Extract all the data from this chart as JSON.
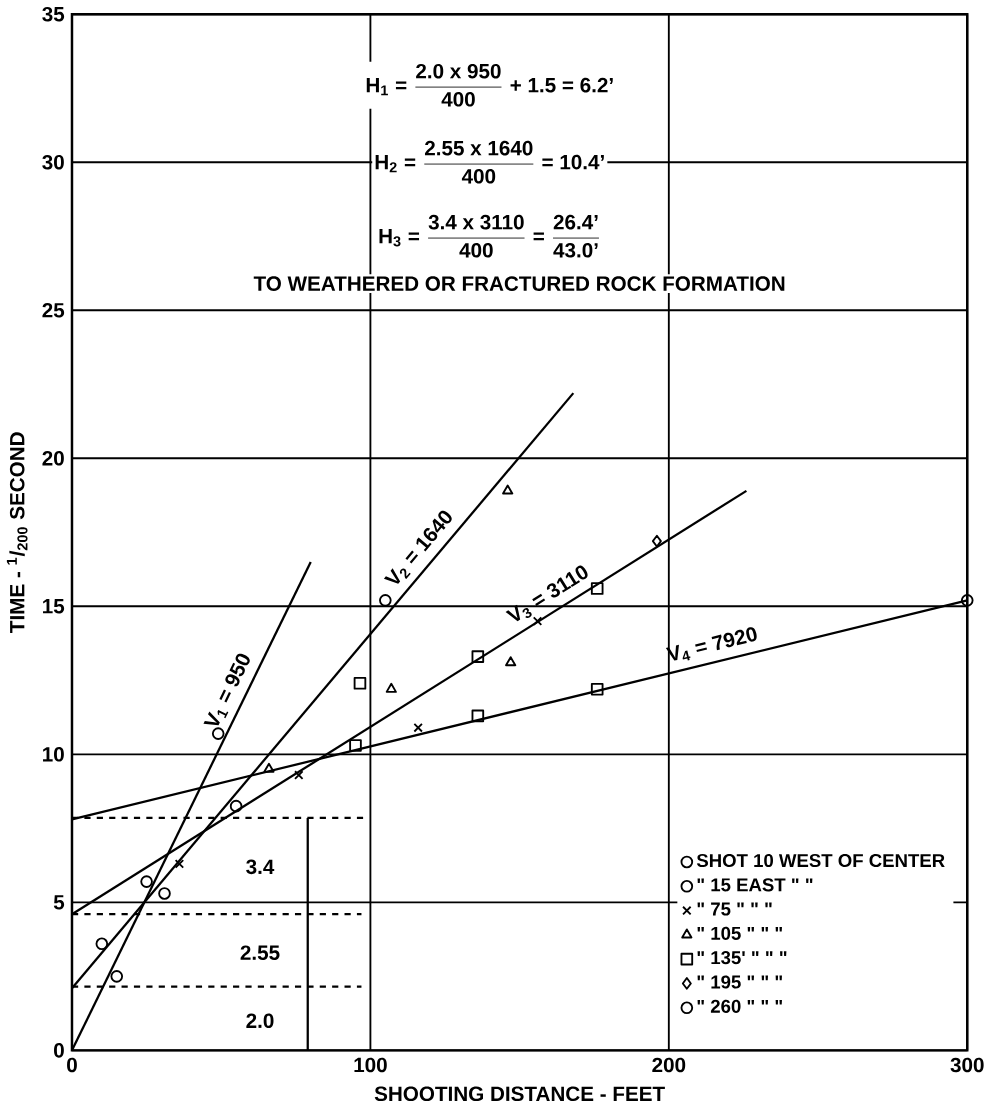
{
  "chart_data": {
    "type": "scatter",
    "xlabel": "SHOOTING DISTANCE - FEET",
    "ylabel": "TIME - $^{1}$/$_{200}$ SECOND",
    "xlim": [
      0,
      300
    ],
    "ylim": [
      0,
      35
    ],
    "xticks": [
      0,
      100,
      200,
      300
    ],
    "yticks": [
      0,
      5,
      10,
      15,
      20,
      25,
      30,
      35
    ],
    "grid": true,
    "legend": "bottom right",
    "annotations": [
      "\\text{H}_{\\text{1}}\\text{ = }\\frac{\\text{2.0 x 950}}{\\text{400}}\\text{ + 1.5 = 6.2'}",
      "\\text{H}_{\\text{2}}\\text{ = }\\frac{\\text{2.55 x 1640}}{\\text{400}}\\text{ = 10.4'}",
      "\\text{H}_{\\text{3}}\\text{ = }\\frac{\\text{3.4 x 3110}}{\\text{400}}\\text{ = }\\frac{\\text{26.4'}}{\\text{43.0'}}",
      "TO WEATHERED OR FRACTURED ROCK FORMATION",
      "3.4",
      "2.55",
      "2.0"
    ],
    "series": [
      {
        "name": "SHOT 10 WEST OF CENTER",
        "marker": "circle",
        "color": "#000000",
        "x": [
          49,
          105
        ],
        "values": [
          10.7,
          15.2
        ]
      },
      {
        "name": "\" 15 EAST \" \"",
        "marker": "circle",
        "color": "#000000",
        "x": [
          10,
          31
        ],
        "values": [
          3.6,
          5.3
        ]
      },
      {
        "name": "\" 75 \" \" \"",
        "marker": "cross",
        "color": "#000000",
        "x": [
          36,
          76,
          116,
          156
        ],
        "values": [
          6.3,
          9.3,
          10.9,
          14.5
        ]
      },
      {
        "name": "\" 105 \" \" \"",
        "marker": "triangle",
        "color": "#000000",
        "x": [
          66,
          107,
          146,
          147
        ],
        "values": [
          9.5,
          12.2,
          18.9,
          13.1
        ]
      },
      {
        "name": "\" 135' \" \" \"",
        "marker": "square",
        "color": "#000000",
        "x": [
          95,
          96.5,
          136,
          136,
          176,
          176
        ],
        "values": [
          10.3,
          12.4,
          11.3,
          13.3,
          12.2,
          15.6
        ]
      },
      {
        "name": "\" 195 \" \" \"",
        "marker": "diamond",
        "color": "#000000",
        "x": [
          196
        ],
        "values": [
          17.2
        ]
      },
      {
        "name": "\" 260 \" \" \"",
        "marker": "circle",
        "color": "#000000",
        "x": [
          15,
          25,
          55,
          300
        ],
        "values": [
          2.5,
          5.7,
          8.25,
          15.2
        ]
      },
      {
        "name": "V$_{1}$ = 950",
        "type": "line",
        "line_style": "solid",
        "color": "#000000",
        "x": [
          0,
          80
        ],
        "values": [
          0,
          16.5
        ]
      },
      {
        "name": "V$_{2}$ = 1640",
        "type": "line",
        "line_style": "solid",
        "color": "#000000",
        "x": [
          0,
          168
        ],
        "values": [
          2.1,
          22.2
        ]
      },
      {
        "name": "V$_{3}$ = 3110",
        "type": "line",
        "line_style": "solid",
        "color": "#000000",
        "x": [
          0,
          226
        ],
        "values": [
          4.6,
          18.9
        ]
      },
      {
        "name": "V$_{4}$ = 7920",
        "type": "line",
        "line_style": "solid",
        "color": "#000000",
        "x": [
          0,
          300
        ],
        "values": [
          7.8,
          15.2
        ]
      },
      {
        "type": "line",
        "line_style": "dashed",
        "color": "#000000",
        "x": [
          0,
          99
        ],
        "values": [
          7.85,
          7.85
        ]
      },
      {
        "type": "line",
        "line_style": "dashed",
        "color": "#000000",
        "x": [
          0,
          97
        ],
        "values": [
          4.6,
          4.6
        ]
      },
      {
        "type": "line",
        "line_style": "dashed",
        "color": "#000000",
        "x": [
          0,
          97
        ],
        "values": [
          2.15,
          2.15
        ]
      },
      {
        "type": "line",
        "line_style": "solid",
        "color": "#000000",
        "x": [
          79,
          79
        ],
        "values": [
          0,
          7.85
        ]
      }
    ]
  }
}
